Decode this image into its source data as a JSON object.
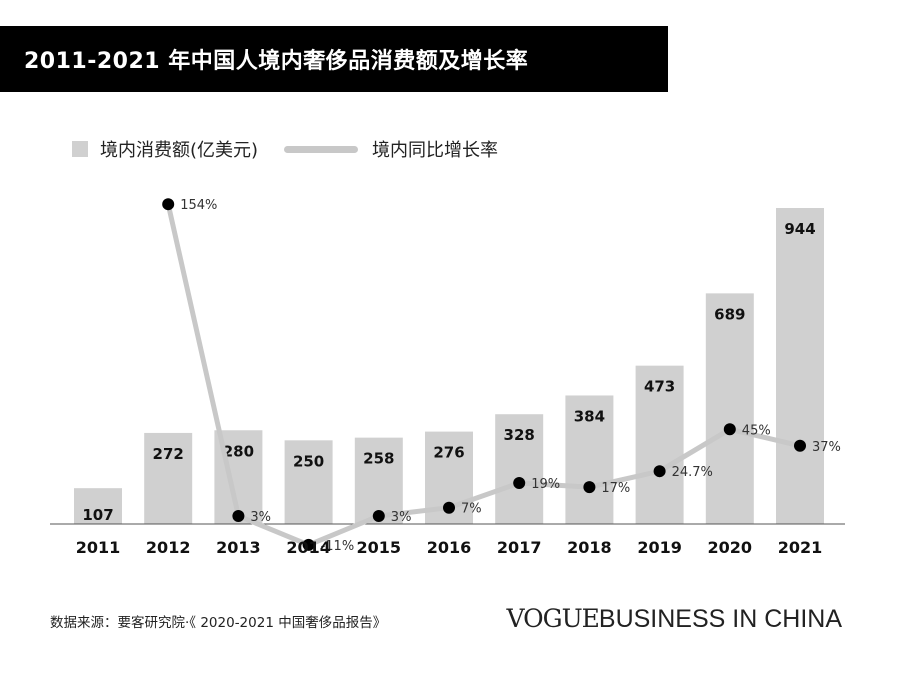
{
  "title": "2011-2021 年中国人境内奢侈品消费额及增长率",
  "legend": {
    "bar_label": "境内消费额(亿美元)",
    "line_label": "境内同比增长率"
  },
  "source": "数据来源：要客研究院·《 2020-2021 中国奢侈品报告》",
  "brand": {
    "vogue": "VOGUE",
    "rest": "BUSINESS IN CHINA"
  },
  "colors": {
    "bar": "#d0d0d0",
    "line": "#c8c8c8",
    "point": "#000000",
    "title_bg": "#000000",
    "title_text": "#ffffff"
  },
  "chart_data": {
    "type": "bar",
    "categories": [
      "2011",
      "2012",
      "2013",
      "2014",
      "2015",
      "2016",
      "2017",
      "2018",
      "2019",
      "2020",
      "2021"
    ],
    "series": [
      {
        "name": "境内消费额(亿美元)",
        "type": "bar",
        "values": [
          107,
          272,
          280,
          250,
          258,
          276,
          328,
          384,
          473,
          689,
          944
        ],
        "labels": [
          "107",
          "272",
          "280",
          "250",
          "258",
          "276",
          "328",
          "384",
          "473",
          "689",
          "944"
        ]
      },
      {
        "name": "境内同比增长率",
        "type": "line",
        "values": [
          null,
          154,
          3,
          -11,
          3,
          7,
          19,
          17,
          24.7,
          45,
          37
        ],
        "labels": [
          "",
          "154%",
          "3%",
          "-11%",
          "3%",
          "7%",
          "19%",
          "17%",
          "24.7%",
          "45%",
          "37%"
        ]
      }
    ]
  }
}
